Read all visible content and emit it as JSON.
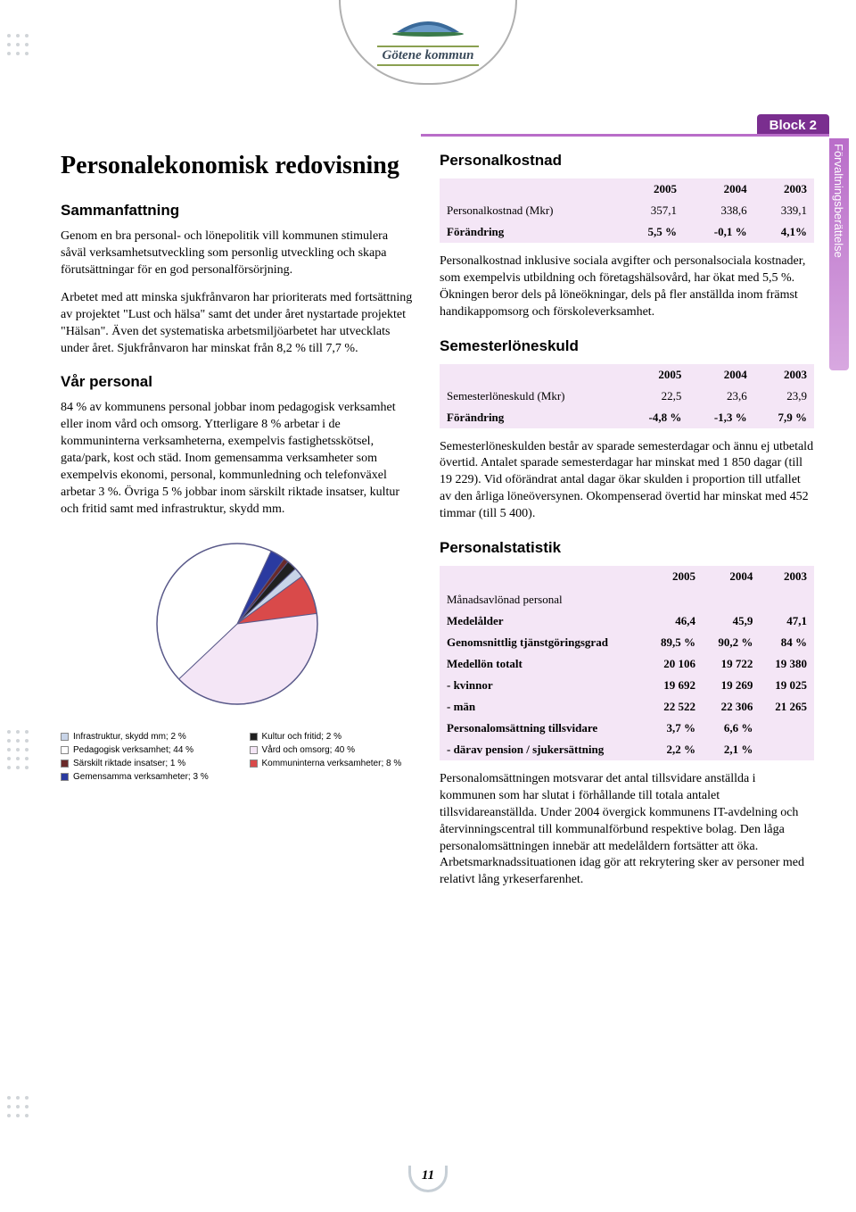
{
  "logo": {
    "text": "Götene kommun"
  },
  "block_tab": "Block 2",
  "side_tab": "Förvaltningsberättelse",
  "page_number": "11",
  "left": {
    "title": "Personalekonomisk redovisning",
    "s1_title": "Sammanfattning",
    "s1_p1": "Genom en bra personal- och lönepolitik vill kommunen stimulera såväl verksamhetsutveckling som personlig utveckling och skapa förutsättningar för en god personalförsörjning.",
    "s1_p2": "Arbetet med att minska sjukfrånvaron har prioriterats med fortsättning av projektet \"Lust och hälsa\" samt det under året nystartade projektet \"Hälsan\". Även det systematiska arbetsmiljöarbetet har utvecklats under året. Sjukfrånvaron har minskat från 8,2 % till 7,7 %.",
    "s2_title": "Vår personal",
    "s2_p1": "84 % av kommunens personal jobbar inom pedagogisk verksamhet eller inom vård och omsorg. Ytterligare 8 % arbetar i de kommuninterna verksamheterna, exempelvis fastighetsskötsel, gata/park, kost och städ. Inom gemensamma verksamheter som exempelvis ekonomi, personal, kommunledning och telefonväxel arbetar 3 %. Övriga 5 % jobbar inom särskilt riktade insatser, kultur och fritid samt med infrastruktur, skydd mm."
  },
  "pie": {
    "diameter": 200,
    "border_color": "#5a5a8a",
    "slices": [
      {
        "label": "Infrastruktur, skydd mm; 2 %",
        "pct": 2,
        "color": "#c8d4e8"
      },
      {
        "label": "Pedagogisk verksamhet; 44 %",
        "pct": 44,
        "color": "#ffffff"
      },
      {
        "label": "Särskilt riktade insatser; 1 %",
        "pct": 1,
        "color": "#6a2a2a"
      },
      {
        "label": "Gemensamma verksamheter; 3 %",
        "pct": 3,
        "color": "#2a3aa0"
      },
      {
        "label": "Kultur och fritid; 2 %",
        "pct": 2,
        "color": "#202020"
      },
      {
        "label": "Vård och omsorg; 40 %",
        "pct": 40,
        "color": "#f4e6f6"
      },
      {
        "label": "Kommuninterna verksamheter; 8 %",
        "pct": 8,
        "color": "#d94a4a"
      }
    ],
    "legend_left": [
      {
        "label": "Infrastruktur, skydd mm; 2 %",
        "color": "#c8d4e8"
      },
      {
        "label": "Pedagogisk verksamhet; 44 %",
        "color": "#ffffff"
      },
      {
        "label": "Särskilt riktade insatser; 1 %",
        "color": "#6a2a2a"
      },
      {
        "label": "Gemensamma verksamheter; 3 %",
        "color": "#2a3aa0"
      }
    ],
    "legend_right": [
      {
        "label": "Kultur och fritid; 2 %",
        "color": "#202020"
      },
      {
        "label": "Vård och omsorg; 40 %",
        "color": "#f4e6f6"
      },
      {
        "label": "Kommuninterna verksamheter; 8 %",
        "color": "#d94a4a"
      }
    ]
  },
  "right": {
    "t1_title": "Personalkostnad",
    "t1": {
      "years": [
        "2005",
        "2004",
        "2003"
      ],
      "rows": [
        {
          "label": "Personalkostnad (Mkr)",
          "v": [
            "357,1",
            "338,6",
            "339,1"
          ]
        },
        {
          "label": "Förändring",
          "v": [
            "5,5 %",
            "-0,1 %",
            "4,1%"
          ],
          "bold": true
        }
      ]
    },
    "t1_p": "Personalkostnad inklusive sociala avgifter och personalsociala kostnader, som exempelvis utbildning och företagshälsovård, har ökat med 5,5 %. Ökningen beror dels på löneökningar, dels på fler anställda inom främst handikappomsorg och förskoleverksamhet.",
    "t2_title": "Semesterlöneskuld",
    "t2": {
      "years": [
        "2005",
        "2004",
        "2003"
      ],
      "rows": [
        {
          "label": "Semesterlöneskuld (Mkr)",
          "v": [
            "22,5",
            "23,6",
            "23,9"
          ]
        },
        {
          "label": "Förändring",
          "v": [
            "-4,8 %",
            "-1,3 %",
            "7,9 %"
          ],
          "bold": true
        }
      ]
    },
    "t2_p": "Semesterlöneskulden består av sparade semesterdagar och ännu ej utbetald övertid. Antalet sparade semesterdagar har minskat med 1 850 dagar (till 19 229). Vid oförändrat antal dagar ökar skulden i proportion till utfallet av den årliga löneöversynen. Okompenserad övertid har minskat med 452 timmar (till 5 400).",
    "t3_title": "Personalstatistik",
    "t3": {
      "years": [
        "2005",
        "2004",
        "2003"
      ],
      "subhead": "Månadsavlönad personal",
      "rows": [
        {
          "label": "Medelålder",
          "v": [
            "46,4",
            "45,9",
            "47,1"
          ],
          "bold": true
        },
        {
          "label": "Genomsnittlig tjänstgöringsgrad",
          "v": [
            "89,5 %",
            "90,2 %",
            "84 %"
          ],
          "bold": true
        },
        {
          "label": "Medellön totalt",
          "v": [
            "20 106",
            "19 722",
            "19 380"
          ],
          "bold": true
        },
        {
          "label": "- kvinnor",
          "v": [
            "19 692",
            "19 269",
            "19 025"
          ],
          "bold": true
        },
        {
          "label": "- män",
          "v": [
            "22 522",
            "22 306",
            "21 265"
          ],
          "bold": true
        },
        {
          "label": "Personalomsättning tillsvidare",
          "v": [
            "3,7 %",
            "6,6 %",
            ""
          ],
          "bold": true
        },
        {
          "label": "- därav pension / sjukersättning",
          "v": [
            "2,2 %",
            "2,1 %",
            ""
          ],
          "bold": true
        }
      ]
    },
    "t3_p": "Personalomsättningen motsvarar det antal tillsvidare anställda i kommunen som har slutat i förhållande till totala antalet tillsvidareanställda. Under 2004 övergick kommunens IT-avdelning och återvinningscentral till kommunalförbund respektive bolag. Den låga personalomsättningen innebär att medelåldern fortsätter att öka. Arbetsmarknadssituationen idag gör att rekrytering sker av personer med relativt lång yrkeserfarenhet."
  },
  "colors": {
    "purple_tab": "#7a2e8f",
    "purple_light": "#b96dc9",
    "table_bg": "#f4e6f6"
  }
}
